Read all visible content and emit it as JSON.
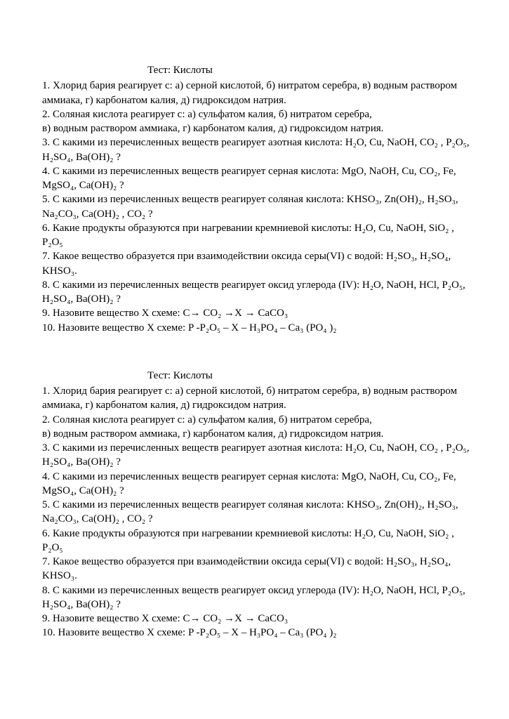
{
  "title": "Тест: Кислоты",
  "lines": [
    "1. Хлорид бария реагирует с:   а) серной кислотой,  б) нитратом серебра, в) водным раствором аммиака, г) карбонатом калия, д) гидроксидом натрия.",
    "2. Соляная кислота реагирует с: а) сульфатом калия,  б) нитратом серебра,",
    "в) водным раствором аммиака, г) карбонатом калия, д) гидроксидом натрия.",
    "3. С какими из перечисленных веществ реагирует азотная кислота: H₂O, Cu, NaOH,  CO₂ ,  P₂O₅,  H₂SO₄,   Ba(OH)₂ ?",
    "4. С какими из перечисленных веществ реагирует серная кислота: MgO,  NaOH, Cu,  CO₂,  Fe,   MgSO₄,  Ca(OH)₂  ?",
    "5. С какими из перечисленных веществ реагирует соляная  кислота: KHSO₃, Zn(OH)₂, H₂SO₃,  Na₂CO₃,  Ca(OH)₂ , CO₂ ?",
    "6. Какие продукты образуются при нагревании кремниевой кислоты:  H₂O, Cu, NaOH,  SiO₂ ,  P₂O₅",
    "7. Какое вещество образуется при взаимодействии оксида серы(VI) с водой: H₂SO₃, H₂SO₄, KHSO₃.",
    "8. С какими из перечисленных веществ реагирует оксид углерода (IV): H₂O, NaOH, HCl,  P₂O₅, H₂SO₄,  Ba(OH)₂ ?",
    "9. Назовите вещество Х схеме: C→ CO₂ →X →  CaCO₃",
    "10. Назовите вещество Х схеме: P -P₂O₅ – X – H₃PO₄ – Ca₃ (PO₄ )₂"
  ]
}
